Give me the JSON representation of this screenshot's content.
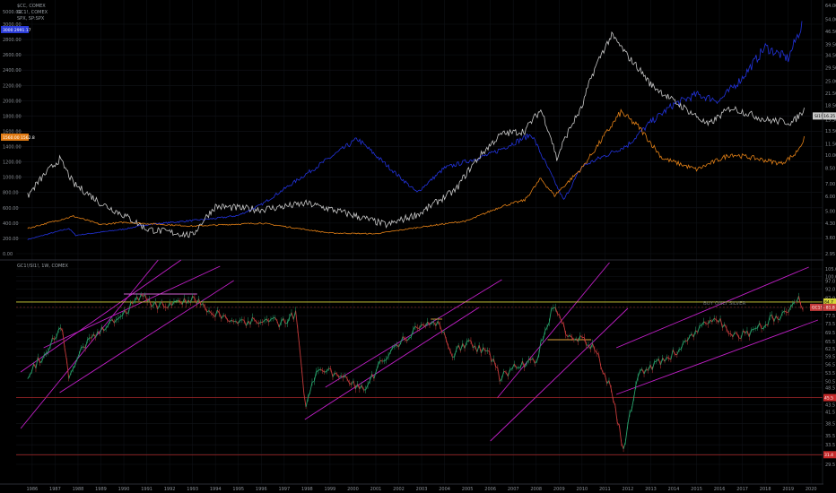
{
  "chart_data": [
    {
      "type": "line",
      "legend": [
        "$CC, COMEX",
        "GC1!, COMEX",
        "SPX, SP:SPX"
      ],
      "left_axis": {
        "ticks": [
          "5000.00",
          "3000.00",
          "2800.00",
          "2600.00",
          "2400.00",
          "2200.00",
          "2000.00",
          "1800.00",
          "1600.00",
          "1400.00",
          "1200.00",
          "1000.00",
          "800.00",
          "600.00",
          "400.00",
          "200.00",
          "0.00"
        ],
        "values": [
          5000,
          3000,
          2800,
          2600,
          2400,
          2200,
          2000,
          1800,
          1600,
          1400,
          1200,
          1000,
          800,
          600,
          400,
          200,
          0
        ]
      },
      "right_axis": {
        "scale": "log",
        "ticks": [
          "64.00",
          "54.00",
          "46.50",
          "39.50",
          "34.50",
          "29.50",
          "25.00",
          "21.50",
          "18.50",
          "15.50",
          "13.50",
          "11.50",
          "10.00",
          "8.50",
          "7.00",
          "6.00",
          "5.00",
          "4.30",
          "3.60",
          "2.95"
        ],
        "values": [
          64,
          54,
          46.5,
          39.5,
          34.5,
          29.5,
          25,
          21.5,
          18.5,
          15.5,
          13.5,
          11.5,
          10,
          8.5,
          7,
          6,
          5,
          4.3,
          3.6,
          2.95
        ]
      },
      "badges": [
        {
          "label": "3000",
          "value": "2991.17",
          "color": "#2a3bd6",
          "side": "left"
        },
        {
          "label": "1560.00",
          "value": "1562.8",
          "color": "#e07a13",
          "side": "left"
        },
        {
          "label": "SI1!",
          "value": "16.25",
          "color": "#c9c9c9",
          "side": "right"
        }
      ],
      "series": [
        {
          "name": "SPX",
          "color": "#2233dd",
          "years": [
            1985.8,
            1987.6,
            1987.9,
            1990,
            1991,
            1994,
            1995,
            1996,
            1998,
            2000.2,
            2001.5,
            2002.8,
            2004,
            2006,
            2007.8,
            2008.3,
            2009.2,
            2010,
            2011,
            2012,
            2013,
            2014,
            2015,
            2016,
            2017,
            2018,
            2019,
            2019.6
          ],
          "values": [
            185,
            330,
            240,
            320,
            380,
            460,
            500,
            640,
            1050,
            1500,
            1150,
            800,
            1120,
            1300,
            1560,
            1250,
            700,
            1140,
            1280,
            1420,
            1720,
            1950,
            2080,
            2000,
            2300,
            2700,
            2550,
            2990
          ]
        },
        {
          "name": "Gold",
          "color": "#e38016",
          "years": [
            1985.8,
            1987.8,
            1989,
            1990,
            1993,
            1996,
            1999,
            2001,
            2003,
            2005,
            2006.5,
            2007.5,
            2008.2,
            2008.8,
            2010,
            2011.7,
            2012.5,
            2013.5,
            2015,
            2016.5,
            2017.5,
            2018.7,
            2019.3,
            2019.7
          ],
          "values": [
            330,
            490,
            380,
            410,
            360,
            400,
            270,
            260,
            350,
            430,
            620,
            700,
            980,
            760,
            1120,
            1850,
            1650,
            1250,
            1100,
            1300,
            1250,
            1180,
            1300,
            1500
          ]
        },
        {
          "name": "Silver",
          "color": "#c8c8c8",
          "years": [
            1985.8,
            1987.2,
            1987.8,
            1989,
            1991,
            1993,
            1994,
            1996,
            1998,
            2001.5,
            2003,
            2004.5,
            2006.5,
            2007.5,
            2008.2,
            2008.9,
            2010,
            2011.3,
            2012,
            2013,
            2014,
            2015.5,
            2016.5,
            2018,
            2019.2,
            2019.7
          ],
          "values": [
            6.0,
            9.5,
            7.0,
            5.5,
            4.0,
            3.7,
            5.3,
            5.1,
            5.5,
            4.2,
            4.9,
            6.5,
            13,
            13.5,
            17.5,
            9.5,
            18,
            44,
            34,
            24,
            19.5,
            14.5,
            18,
            15.5,
            15,
            17.5
          ]
        }
      ]
    },
    {
      "type": "line",
      "title": "GC1!/SI1!, 1W, COMEX",
      "right_axis": {
        "ticks": [
          "105.0",
          "100.0",
          "97.0",
          "92.0",
          "87.0",
          "81.5",
          "77.5",
          "73.5",
          "69.5",
          "65.5",
          "62.5",
          "59.5",
          "56.5",
          "53.5",
          "50.5",
          "48.5",
          "45.5",
          "43.5",
          "41.5",
          "38.5",
          "35.5",
          "33.5",
          "31.5",
          "29.5"
        ],
        "values": [
          105,
          100,
          97,
          92,
          87,
          81.5,
          77.5,
          73.5,
          69.5,
          65.5,
          62.5,
          59.5,
          56.5,
          53.5,
          50.5,
          48.5,
          45.5,
          43.5,
          41.5,
          38.5,
          35.5,
          33.5,
          31.5,
          29.5
        ]
      },
      "horizontal_levels": [
        {
          "value": 84.7,
          "color": "#d6d63a",
          "label": "84.7"
        },
        {
          "value": 45.5,
          "color": "#c52a2a",
          "label": "45.5"
        },
        {
          "value": 31.4,
          "color": "#c52a2a",
          "label": "31.4"
        }
      ],
      "current_value": "81.8",
      "current_label": "GC1! - 81.8",
      "annotation": "BUY ONLY SILVER",
      "ratio_path": {
        "years": [
          1985.8,
          1986.5,
          1987.3,
          1987.6,
          1988.2,
          1989,
          1990,
          1990.8,
          1991.3,
          1992,
          1993,
          1994,
          1995,
          1996,
          1996.8,
          1997.5,
          1997.9,
          1998.5,
          1999.5,
          2000.5,
          2001.5,
          2002.3,
          2003,
          2003.5,
          2003.8,
          2004.3,
          2005,
          2006,
          2006.4,
          2007,
          2008,
          2008.8,
          2009.3,
          2010,
          2010.5,
          2011.3,
          2011.8,
          2012.5,
          2013.5,
          2014.3,
          2015.2,
          2016,
          2016.5,
          2017.5,
          2018.3,
          2019,
          2019.4,
          2019.7
        ],
        "values": [
          53,
          60,
          72,
          52,
          63,
          70,
          78,
          90,
          83,
          84,
          86,
          79,
          73,
          76,
          74,
          78,
          43,
          55,
          52,
          48,
          60,
          67,
          73,
          76,
          72,
          60,
          65,
          60,
          52,
          55,
          58,
          83,
          70,
          66,
          63,
          47,
          32,
          53,
          58,
          62,
          72,
          75,
          68,
          70,
          76,
          80,
          87,
          82
        ]
      },
      "x_axis_years": [
        "1986",
        "1987",
        "1988",
        "1989",
        "1990",
        "1991",
        "1992",
        "1993",
        "1994",
        "1995",
        "1996",
        "1997",
        "1998",
        "1999",
        "2000",
        "2001",
        "2002",
        "2003",
        "2004",
        "2005",
        "2006",
        "2007",
        "2008",
        "2009",
        "2010",
        "2011",
        "2012",
        "2013",
        "2014",
        "2015",
        "2016",
        "2017",
        "2018",
        "2019",
        "2020"
      ]
    }
  ]
}
